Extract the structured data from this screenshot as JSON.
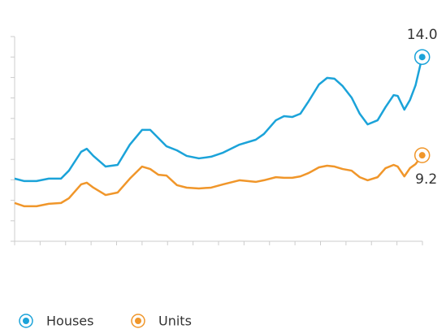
{
  "chart_data": {
    "type": "line",
    "x": [
      0,
      0.38,
      0.86,
      1.34,
      1.82,
      2.13,
      2.61,
      2.83,
      3.09,
      3.57,
      4.04,
      4.52,
      5.0,
      5.32,
      5.64,
      5.96,
      6.37,
      6.75,
      7.23,
      7.71,
      8.18,
      8.82,
      9.46,
      9.78,
      10.25,
      10.57,
      10.89,
      11.21,
      11.53,
      11.94,
      12.26,
      12.55,
      12.87,
      13.22,
      13.54,
      13.85,
      14.24,
      14.55,
      14.87,
      15.03,
      15.29,
      15.51,
      15.73,
      15.99
    ],
    "series": [
      {
        "name": "Houses",
        "color": "#1ba3d9",
        "values": [
          8.06,
          7.94,
          7.94,
          8.06,
          8.06,
          8.45,
          9.37,
          9.52,
          9.17,
          8.65,
          8.73,
          9.72,
          10.44,
          10.44,
          10.04,
          9.64,
          9.44,
          9.17,
          9.05,
          9.13,
          9.33,
          9.72,
          9.96,
          10.24,
          10.91,
          11.11,
          11.07,
          11.23,
          11.83,
          12.66,
          12.98,
          12.94,
          12.58,
          12.02,
          11.23,
          10.71,
          10.91,
          11.55,
          12.14,
          12.1,
          11.43,
          11.9,
          12.62,
          14.0
        ],
        "value_labels": [
          null,
          null,
          null,
          null,
          null,
          null,
          null,
          null,
          null,
          null,
          null,
          null,
          null,
          null,
          null,
          null,
          null,
          null,
          null,
          null,
          null,
          null,
          null,
          null,
          null,
          null,
          null,
          null,
          null,
          null,
          null,
          null,
          null,
          null,
          null,
          null,
          null,
          null,
          null,
          null,
          null,
          null,
          null,
          "14.0"
        ]
      },
      {
        "name": "Units",
        "color": "#f0962a",
        "values": [
          6.87,
          6.71,
          6.71,
          6.83,
          6.87,
          7.1,
          7.78,
          7.86,
          7.62,
          7.26,
          7.38,
          8.06,
          8.65,
          8.53,
          8.25,
          8.21,
          7.74,
          7.62,
          7.58,
          7.62,
          7.78,
          7.98,
          7.9,
          7.98,
          8.13,
          8.1,
          8.1,
          8.17,
          8.33,
          8.61,
          8.69,
          8.65,
          8.53,
          8.45,
          8.13,
          7.98,
          8.13,
          8.57,
          8.73,
          8.65,
          8.17,
          8.57,
          8.77,
          9.2
        ],
        "value_labels": [
          null,
          null,
          null,
          null,
          null,
          null,
          null,
          null,
          null,
          null,
          null,
          null,
          null,
          null,
          null,
          null,
          null,
          null,
          null,
          null,
          null,
          null,
          null,
          null,
          null,
          null,
          null,
          null,
          null,
          null,
          null,
          null,
          null,
          null,
          null,
          null,
          null,
          null,
          null,
          null,
          null,
          null,
          null,
          "9.2"
        ]
      }
    ],
    "xlim": [
      0,
      16
    ],
    "xticks": [
      0,
      1,
      2,
      3,
      4,
      5,
      6,
      7,
      8,
      9,
      10,
      11,
      12,
      13,
      14,
      15,
      16
    ],
    "ylim": [
      5,
      15
    ],
    "yticks": [
      5,
      6,
      7,
      8,
      9,
      10,
      11,
      12,
      13,
      14,
      15
    ]
  }
}
